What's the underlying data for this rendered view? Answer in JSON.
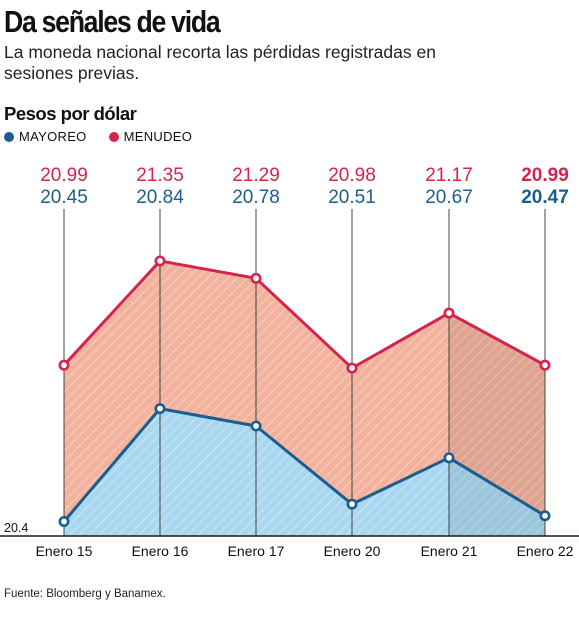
{
  "header": {
    "title": "Da señales de vida",
    "subtitle": "La moneda nacional recorta las pérdidas registradas en sesiones previas.",
    "unit_label": "Pesos por dólar"
  },
  "source": "Fuente: Bloomberg y Banamex.",
  "colors": {
    "mayoreo": "#1b5d8f",
    "menudeo": "#d6234d",
    "mayoreo_fill": "#a9d7f0",
    "menudeo_fill": "#f2b29d"
  },
  "chart_data": {
    "type": "area",
    "categories": [
      "Enero 15",
      "Enero 16",
      "Enero 17",
      "Enero 20",
      "Enero 21",
      "Enero 22"
    ],
    "series": [
      {
        "name": "MAYOREO",
        "values": [
          20.45,
          20.84,
          20.78,
          20.51,
          20.67,
          20.47
        ],
        "labels": [
          "20.45",
          "20.84",
          "20.78",
          "20.51",
          "20.67",
          "20.47"
        ]
      },
      {
        "name": "MENUDEO",
        "values": [
          20.99,
          21.35,
          21.29,
          20.98,
          21.17,
          20.99
        ],
        "labels": [
          "20.99",
          "21.35",
          "21.29",
          "20.98",
          "21.17",
          "20.99"
        ]
      }
    ],
    "y_baseline_label": "20.4",
    "ylim": [
      20.4,
      21.45
    ],
    "legend": "top-left",
    "grid": false
  }
}
